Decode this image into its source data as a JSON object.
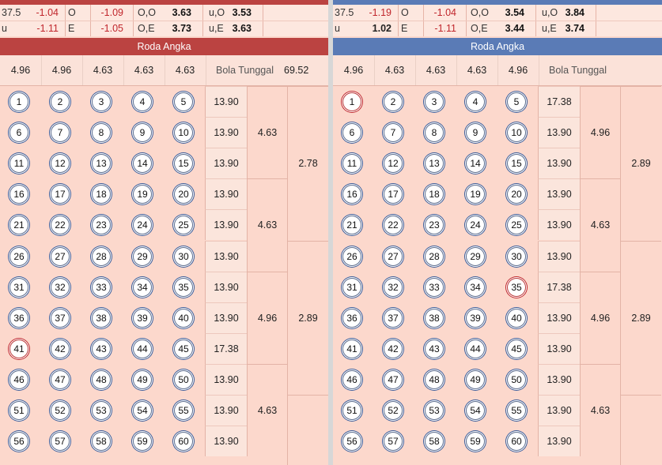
{
  "left": {
    "colors": {
      "strip": "#bb4341",
      "header": "#bb4341"
    },
    "odds_rows": [
      {
        "c1": "37.5",
        "c2": "-1.04",
        "c3": "O",
        "c4": "-1.09",
        "c5": "O,O",
        "c6": "3.63",
        "c7": "u,O",
        "c8": "3.53"
      },
      {
        "c1": "u",
        "c2": "-1.11",
        "c3": "E",
        "c4": "-1.05",
        "c5": "O,E",
        "c6": "3.73",
        "c7": "u,E",
        "c8": "3.63"
      }
    ],
    "section_title": "Roda Angka",
    "summary": [
      "4.96",
      "4.96",
      "4.63",
      "4.63",
      "4.63"
    ],
    "bola_label": "Bola Tunggal",
    "bola_value": "69.52",
    "rows": [
      {
        "balls": [
          "1",
          "2",
          "3",
          "4",
          "5"
        ],
        "odd": "13.90"
      },
      {
        "balls": [
          "6",
          "7",
          "8",
          "9",
          "10"
        ],
        "odd": "13.90"
      },
      {
        "balls": [
          "11",
          "12",
          "13",
          "14",
          "15"
        ],
        "odd": "13.90"
      },
      {
        "balls": [
          "16",
          "17",
          "18",
          "19",
          "20"
        ],
        "odd": "13.90"
      },
      {
        "balls": [
          "21",
          "22",
          "23",
          "24",
          "25"
        ],
        "odd": "13.90"
      },
      {
        "balls": [
          "26",
          "27",
          "28",
          "29",
          "30"
        ],
        "odd": "13.90"
      },
      {
        "balls": [
          "31",
          "32",
          "33",
          "34",
          "35"
        ],
        "odd": "13.90"
      },
      {
        "balls": [
          "36",
          "37",
          "38",
          "39",
          "40"
        ],
        "odd": "13.90"
      },
      {
        "balls": [
          "41",
          "42",
          "43",
          "44",
          "45"
        ],
        "odd": "17.38"
      },
      {
        "balls": [
          "46",
          "47",
          "48",
          "49",
          "50"
        ],
        "odd": "13.90"
      },
      {
        "balls": [
          "51",
          "52",
          "53",
          "54",
          "55"
        ],
        "odd": "13.90"
      },
      {
        "balls": [
          "56",
          "57",
          "58",
          "59",
          "60"
        ],
        "odd": "13.90"
      }
    ],
    "highlight": [
      "41"
    ],
    "groups": [
      "4.63",
      "4.63",
      "4.96",
      "4.63"
    ],
    "pairs": [
      "2.78",
      "2.89"
    ]
  },
  "right": {
    "colors": {
      "strip": "#5a7bb6",
      "header": "#5a7bb6"
    },
    "odds_rows": [
      {
        "c1": "37.5",
        "c2": "-1.19",
        "c3": "O",
        "c4": "-1.04",
        "c5": "O,O",
        "c6": "3.54",
        "c7": "u,O",
        "c8": "3.84"
      },
      {
        "c1": "u",
        "c2": "1.02",
        "c3": "E",
        "c4": "-1.11",
        "c5": "O,E",
        "c6": "3.44",
        "c7": "u,E",
        "c8": "3.74"
      }
    ],
    "section_title": "Roda Angka",
    "summary": [
      "4.96",
      "4.63",
      "4.63",
      "4.63",
      "4.96"
    ],
    "bola_label": "Bola Tunggal",
    "bola_value": "",
    "rows": [
      {
        "balls": [
          "1",
          "2",
          "3",
          "4",
          "5"
        ],
        "odd": "17.38"
      },
      {
        "balls": [
          "6",
          "7",
          "8",
          "9",
          "10"
        ],
        "odd": "13.90"
      },
      {
        "balls": [
          "11",
          "12",
          "13",
          "14",
          "15"
        ],
        "odd": "13.90"
      },
      {
        "balls": [
          "16",
          "17",
          "18",
          "19",
          "20"
        ],
        "odd": "13.90"
      },
      {
        "balls": [
          "21",
          "22",
          "23",
          "24",
          "25"
        ],
        "odd": "13.90"
      },
      {
        "balls": [
          "26",
          "27",
          "28",
          "29",
          "30"
        ],
        "odd": "13.90"
      },
      {
        "balls": [
          "31",
          "32",
          "33",
          "34",
          "35"
        ],
        "odd": "17.38"
      },
      {
        "balls": [
          "36",
          "37",
          "38",
          "39",
          "40"
        ],
        "odd": "13.90"
      },
      {
        "balls": [
          "41",
          "42",
          "43",
          "44",
          "45"
        ],
        "odd": "13.90"
      },
      {
        "balls": [
          "46",
          "47",
          "48",
          "49",
          "50"
        ],
        "odd": "13.90"
      },
      {
        "balls": [
          "51",
          "52",
          "53",
          "54",
          "55"
        ],
        "odd": "13.90"
      },
      {
        "balls": [
          "56",
          "57",
          "58",
          "59",
          "60"
        ],
        "odd": "13.90"
      }
    ],
    "highlight": [
      "1",
      "35"
    ],
    "groups": [
      "4.96",
      "4.63",
      "4.96",
      "4.63"
    ],
    "pairs": [
      "2.89",
      "2.89"
    ]
  }
}
